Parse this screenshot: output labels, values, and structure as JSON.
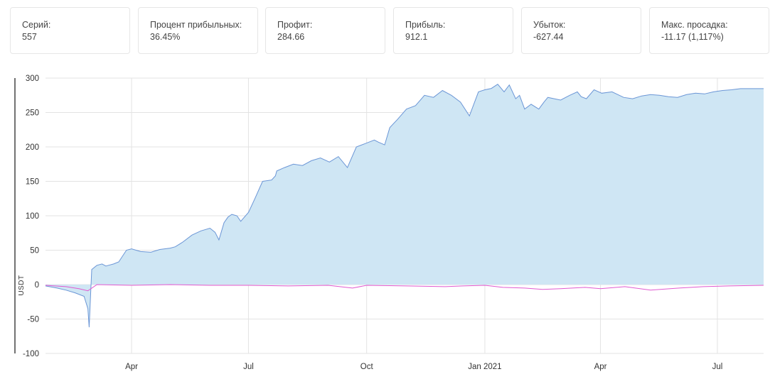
{
  "stats": [
    {
      "label": "Серий:",
      "value": "557"
    },
    {
      "label": "Процент прибыльных:",
      "value": "36.45%"
    },
    {
      "label": "Профит:",
      "value": "284.66"
    },
    {
      "label": "Прибыль:",
      "value": "912.1"
    },
    {
      "label": "Убыток:",
      "value": "-627.44"
    },
    {
      "label": "Макс. просадка:",
      "value": "-11.17 (1,117%)"
    }
  ],
  "colors": {
    "equity_line": "#6b96d6",
    "equity_fill": "#cfe6f4",
    "trade_line": "#e05ad0",
    "grid": "#e3e3e3",
    "axis": "#444444"
  },
  "chart_data": {
    "type": "area",
    "title": "",
    "xlabel": "",
    "ylabel": "USDT",
    "ylim": [
      -100,
      300
    ],
    "yticks": [
      -100,
      -50,
      0,
      50,
      100,
      150,
      200,
      250,
      300
    ],
    "xlim": [
      "2020-01-25",
      "2021-08-06"
    ],
    "xticks": [
      {
        "date": "2020-04-01",
        "label": "Apr"
      },
      {
        "date": "2020-07-01",
        "label": "Jul"
      },
      {
        "date": "2020-10-01",
        "label": "Oct"
      },
      {
        "date": "2021-01-01",
        "label": "Jan 2021"
      },
      {
        "date": "2021-04-01",
        "label": "Apr"
      },
      {
        "date": "2021-07-01",
        "label": "Jul"
      }
    ],
    "grid": true,
    "series": [
      {
        "type": "area",
        "x": [
          "2020-01-25",
          "2020-02-03",
          "2020-02-10",
          "2020-02-17",
          "2020-02-24",
          "2020-02-27",
          "2020-02-28",
          "2020-03-01",
          "2020-03-05",
          "2020-03-09",
          "2020-03-12",
          "2020-03-14",
          "2020-03-18",
          "2020-03-22",
          "2020-03-28",
          "2020-04-01",
          "2020-04-08",
          "2020-04-16",
          "2020-04-23",
          "2020-05-01",
          "2020-05-05",
          "2020-05-11",
          "2020-05-18",
          "2020-05-25",
          "2020-06-01",
          "2020-06-05",
          "2020-06-08",
          "2020-06-12",
          "2020-06-15",
          "2020-06-18",
          "2020-06-22",
          "2020-06-25",
          "2020-07-01",
          "2020-07-06",
          "2020-07-12",
          "2020-07-19",
          "2020-07-22",
          "2020-07-23",
          "2020-07-29",
          "2020-08-05",
          "2020-08-12",
          "2020-08-19",
          "2020-08-26",
          "2020-09-02",
          "2020-09-09",
          "2020-09-16",
          "2020-09-23",
          "2020-09-30",
          "2020-10-07",
          "2020-10-10",
          "2020-10-15",
          "2020-10-19",
          "2020-10-25",
          "2020-11-01",
          "2020-11-08",
          "2020-11-15",
          "2020-11-22",
          "2020-11-29",
          "2020-12-06",
          "2020-12-13",
          "2020-12-20",
          "2020-12-27",
          "2021-01-01",
          "2021-01-06",
          "2021-01-11",
          "2021-01-16",
          "2021-01-20",
          "2021-01-25",
          "2021-01-28",
          "2021-02-01",
          "2021-02-06",
          "2021-02-12",
          "2021-02-16",
          "2021-02-19",
          "2021-02-24",
          "2021-03-01",
          "2021-03-08",
          "2021-03-14",
          "2021-03-17",
          "2021-03-21",
          "2021-03-27",
          "2021-04-02",
          "2021-04-10",
          "2021-04-19",
          "2021-04-26",
          "2021-05-03",
          "2021-05-10",
          "2021-05-17",
          "2021-05-24",
          "2021-05-31",
          "2021-06-07",
          "2021-06-14",
          "2021-06-21",
          "2021-06-28",
          "2021-07-05",
          "2021-07-12",
          "2021-07-19",
          "2021-07-26",
          "2021-08-06"
        ],
        "y": [
          -2,
          -5,
          -8,
          -12,
          -17,
          -35,
          -62,
          22,
          28,
          30,
          27,
          28,
          30,
          33,
          50,
          52,
          48,
          47,
          51,
          53,
          55,
          62,
          72,
          78,
          82,
          76,
          65,
          90,
          98,
          102,
          100,
          92,
          105,
          125,
          150,
          152,
          158,
          165,
          170,
          175,
          173,
          180,
          184,
          178,
          186,
          170,
          200,
          205,
          210,
          207,
          203,
          228,
          240,
          255,
          260,
          275,
          272,
          282,
          275,
          265,
          245,
          280,
          283,
          285,
          291,
          280,
          290,
          270,
          275,
          255,
          262,
          255,
          265,
          272,
          270,
          268,
          275,
          280,
          273,
          270,
          283,
          278,
          280,
          272,
          270,
          274,
          276,
          275,
          273,
          272,
          276,
          278,
          277,
          280,
          282,
          283,
          284.66,
          284.66,
          284.66
        ]
      },
      {
        "type": "line",
        "x": [
          "2020-01-25",
          "2020-02-10",
          "2020-02-20",
          "2020-02-27",
          "2020-03-05",
          "2020-04-01",
          "2020-05-01",
          "2020-06-01",
          "2020-07-01",
          "2020-08-01",
          "2020-09-01",
          "2020-09-20",
          "2020-10-01",
          "2020-11-01",
          "2020-12-01",
          "2020-12-15",
          "2021-01-01",
          "2021-01-15",
          "2021-02-01",
          "2021-02-15",
          "2021-03-01",
          "2021-03-20",
          "2021-04-01",
          "2021-04-20",
          "2021-05-10",
          "2021-06-01",
          "2021-06-20",
          "2021-07-10",
          "2021-08-06"
        ],
        "y": [
          -1,
          -3,
          -6,
          -9,
          0,
          -1,
          0,
          -1,
          -1,
          -2,
          -1,
          -5,
          -1,
          -2,
          -3,
          -2,
          -1,
          -4,
          -5,
          -7,
          -6,
          -4,
          -6,
          -3,
          -8,
          -5,
          -3,
          -2,
          -1
        ]
      }
    ]
  }
}
